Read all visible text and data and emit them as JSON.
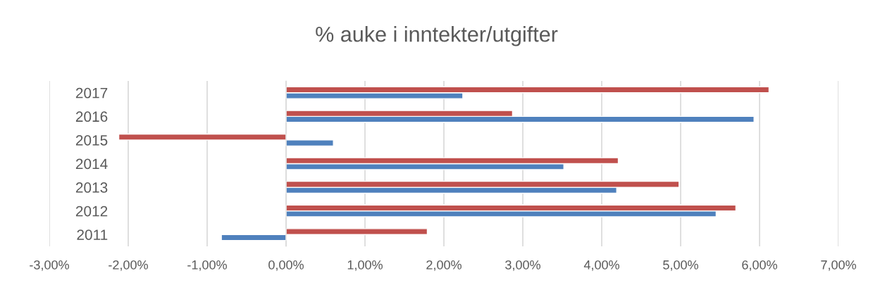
{
  "chart_data": {
    "type": "bar",
    "orientation": "horizontal",
    "title": "% auke i inntekter/utgifter",
    "categories": [
      "2017",
      "2016",
      "2015",
      "2014",
      "2013",
      "2012",
      "2011"
    ],
    "series": [
      {
        "color": "#4f81bd",
        "values": [
          2.24,
          5.93,
          0.6,
          3.52,
          4.19,
          5.45,
          -0.82
        ]
      },
      {
        "color": "#c0504d",
        "values": [
          6.12,
          2.87,
          -2.12,
          4.21,
          4.98,
          5.7,
          1.79
        ]
      }
    ],
    "xlim": [
      -3,
      7
    ],
    "xticks": [
      {
        "value": -3,
        "label": "-3,00%"
      },
      {
        "value": -2,
        "label": "-2,00%"
      },
      {
        "value": -1,
        "label": "-1,00%"
      },
      {
        "value": 0,
        "label": "0,00%"
      },
      {
        "value": 1,
        "label": "1,00%"
      },
      {
        "value": 2,
        "label": "2,00%"
      },
      {
        "value": 3,
        "label": "3,00%"
      },
      {
        "value": 4,
        "label": "4,00%"
      },
      {
        "value": 5,
        "label": "5,00%"
      },
      {
        "value": 6,
        "label": "6,00%"
      },
      {
        "value": 7,
        "label": "7,00%"
      }
    ],
    "grid": "x"
  }
}
